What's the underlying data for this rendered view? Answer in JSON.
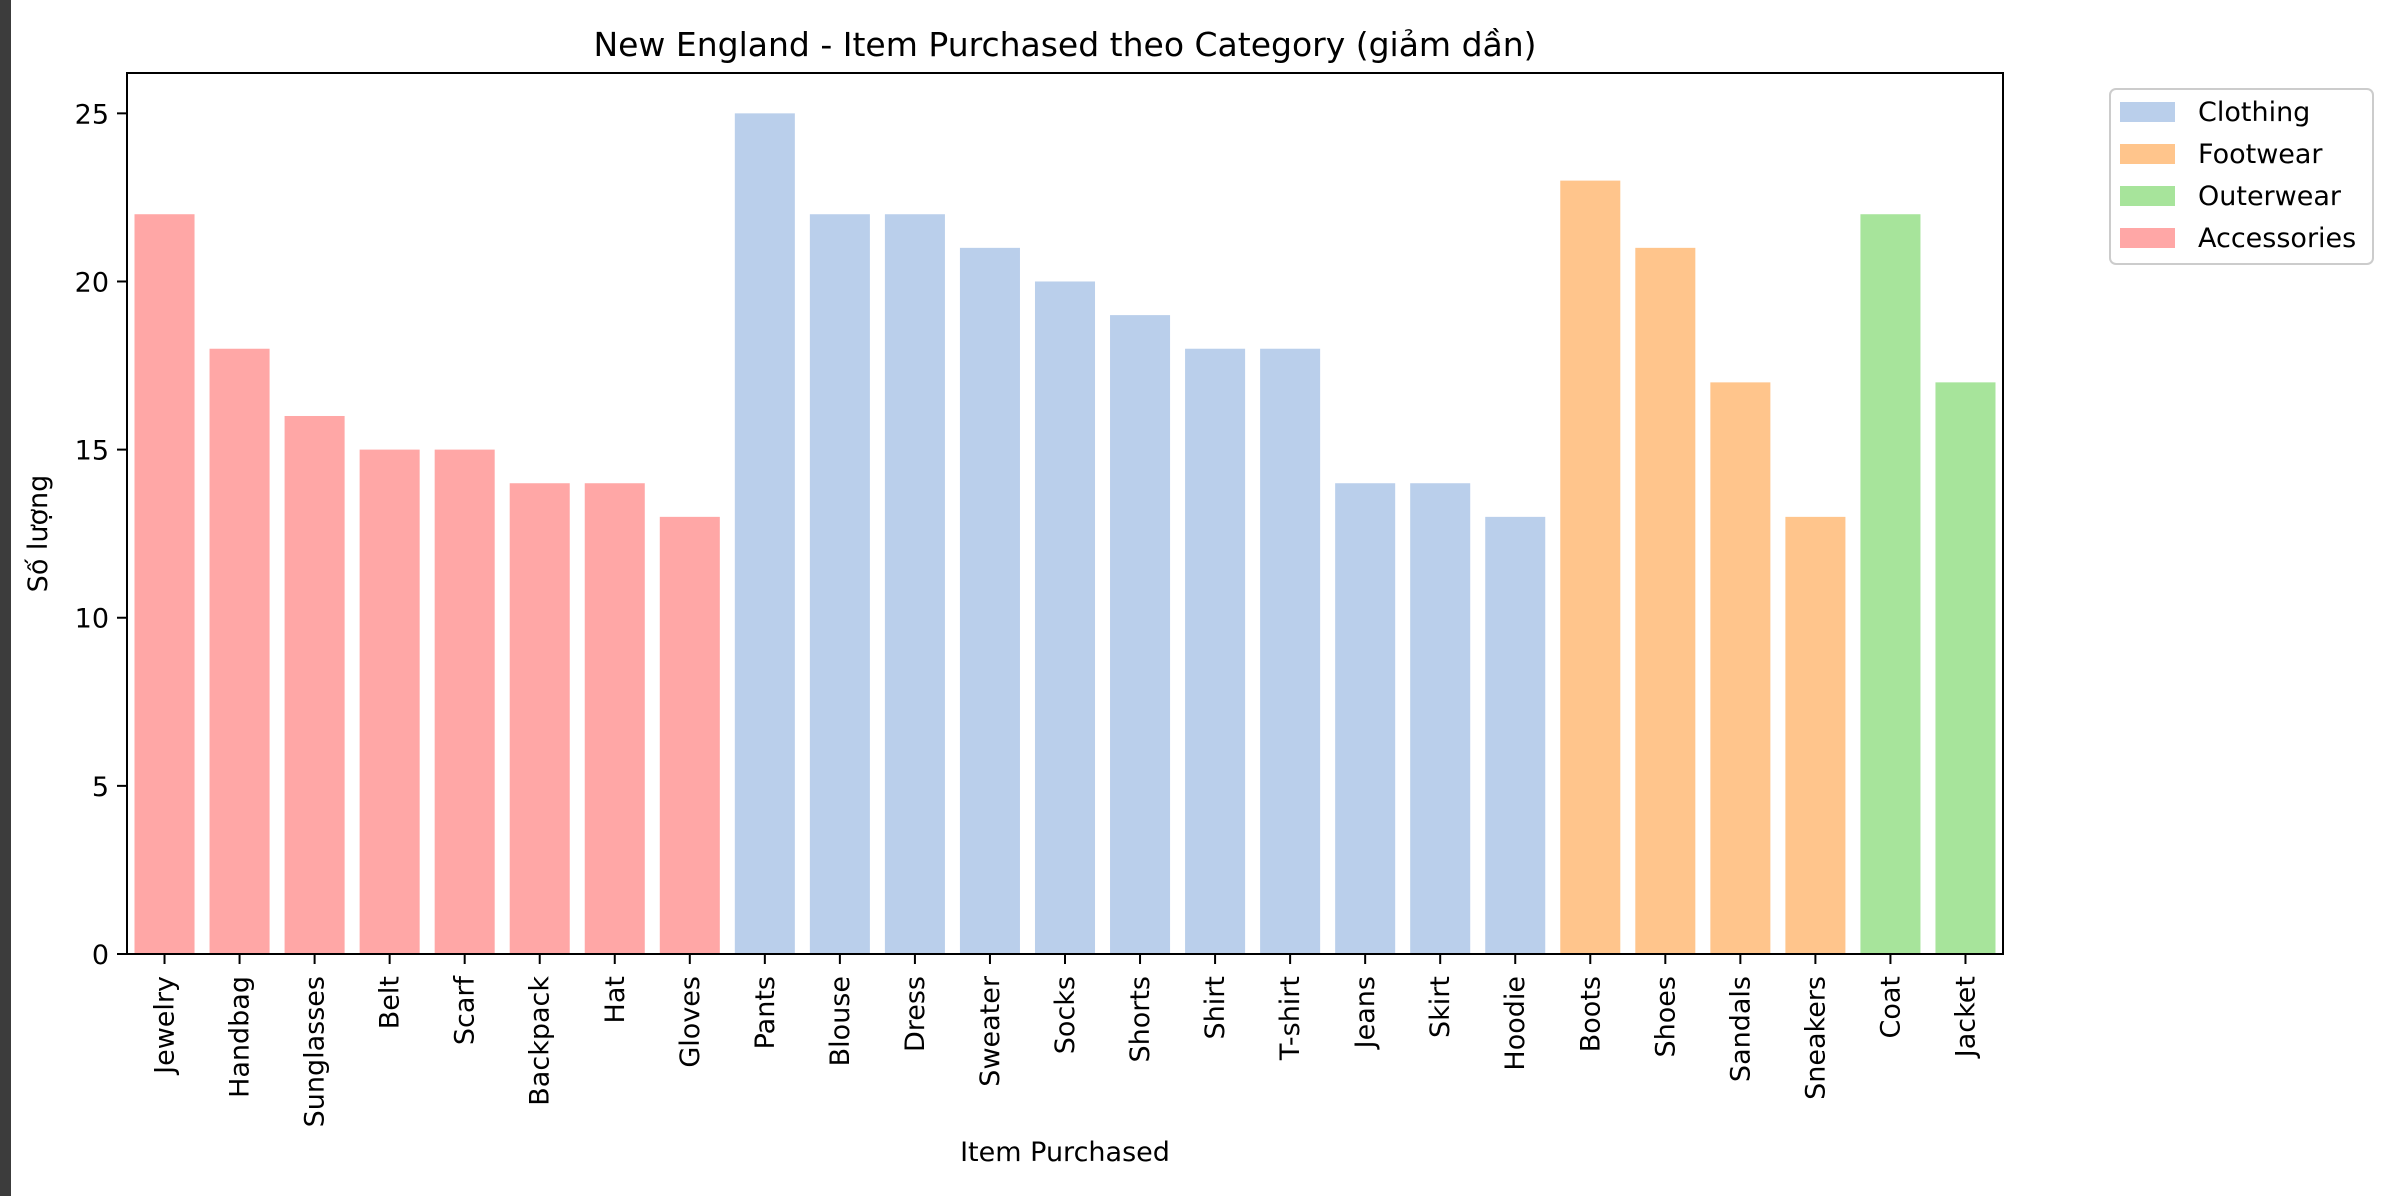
{
  "chart_data": {
    "type": "bar",
    "title": "New England - Item Purchased theo Category (giảm dần)",
    "xlabel": "Item Purchased",
    "ylabel": "Số lượng",
    "ylim": [
      0,
      26.2
    ],
    "yticks": [
      0,
      5,
      10,
      15,
      20,
      25
    ],
    "grid": false,
    "legend_position": "outside-top-right",
    "legend": [
      {
        "name": "Clothing",
        "color": "#aec7e8"
      },
      {
        "name": "Footwear",
        "color": "#ffbb78"
      },
      {
        "name": "Outerwear",
        "color": "#98df8a"
      },
      {
        "name": "Accessories",
        "color": "#ff9896"
      }
    ],
    "categories": [
      "Jewelry",
      "Handbag",
      "Sunglasses",
      "Belt",
      "Scarf",
      "Backpack",
      "Hat",
      "Gloves",
      "Pants",
      "Blouse",
      "Dress",
      "Sweater",
      "Socks",
      "Shorts",
      "Shirt",
      "T-shirt",
      "Jeans",
      "Skirt",
      "Hoodie",
      "Boots",
      "Shoes",
      "Sandals",
      "Sneakers",
      "Coat",
      "Jacket"
    ],
    "values": [
      22,
      18,
      16,
      15,
      15,
      14,
      14,
      13,
      25,
      22,
      22,
      21,
      20,
      19,
      18,
      18,
      14,
      14,
      13,
      23,
      21,
      17,
      13,
      22,
      17
    ],
    "category_group": [
      "Accessories",
      "Accessories",
      "Accessories",
      "Accessories",
      "Accessories",
      "Accessories",
      "Accessories",
      "Accessories",
      "Clothing",
      "Clothing",
      "Clothing",
      "Clothing",
      "Clothing",
      "Clothing",
      "Clothing",
      "Clothing",
      "Clothing",
      "Clothing",
      "Clothing",
      "Footwear",
      "Footwear",
      "Footwear",
      "Footwear",
      "Outerwear",
      "Outerwear"
    ]
  }
}
